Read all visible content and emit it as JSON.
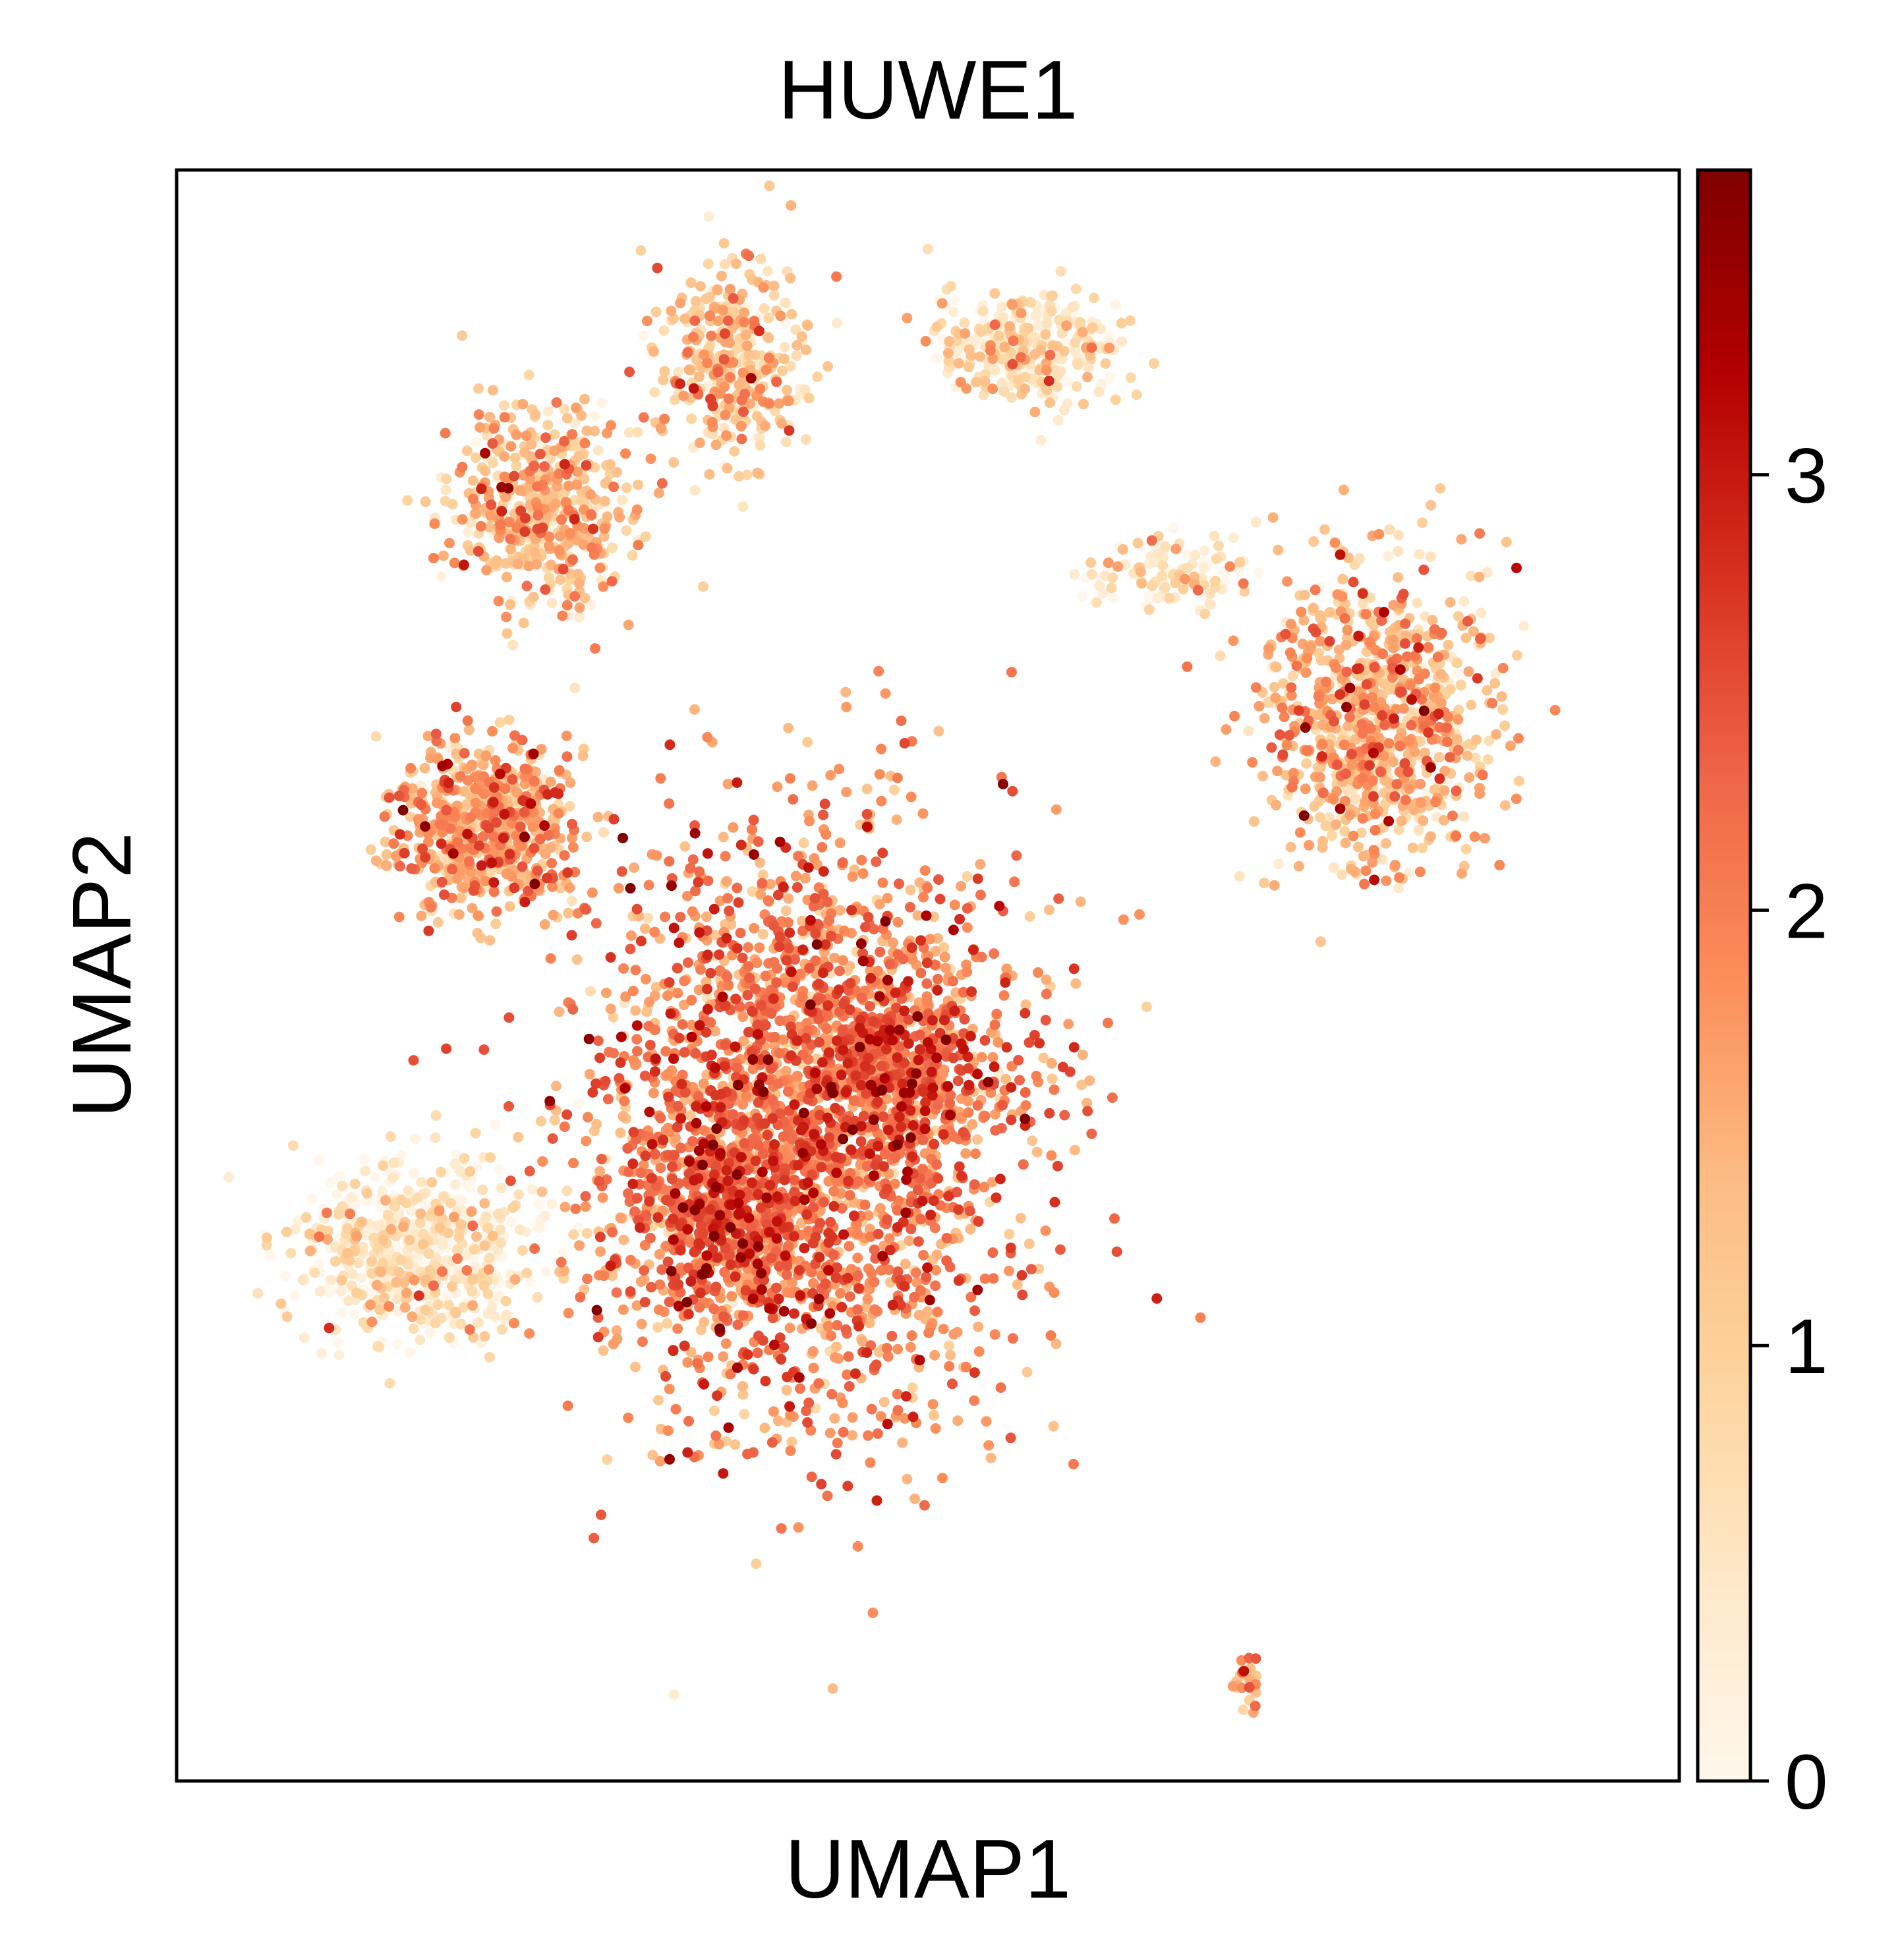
{
  "chart_data": {
    "type": "scatter",
    "title": "HUWE1",
    "xlabel": "UMAP1",
    "ylabel": "UMAP2",
    "x_ticks": [],
    "y_ticks": [],
    "grid": false,
    "colorbar": {
      "colormap": "OrRd",
      "range": [
        0,
        3.7
      ],
      "ticks": [
        0,
        1,
        2,
        3
      ],
      "tick_labels": [
        "0",
        "1",
        "2",
        "3"
      ]
    },
    "xlim": [
      0,
      100
    ],
    "ylim": [
      0,
      100
    ],
    "clusters": [
      {
        "x": 42,
        "y": 41,
        "sx": 10,
        "sy": 13,
        "n": 2600,
        "level": 1.9
      },
      {
        "x": 36,
        "y": 35,
        "sx": 4,
        "sy": 5,
        "n": 450,
        "level": 2.2
      },
      {
        "x": 48,
        "y": 44,
        "sx": 4,
        "sy": 4,
        "n": 400,
        "level": 2.1
      },
      {
        "x": 16,
        "y": 33,
        "sx": 5.5,
        "sy": 3.8,
        "n": 650,
        "level": 0.35
      },
      {
        "x": 20.5,
        "y": 59,
        "sx": 4.2,
        "sy": 3.8,
        "n": 650,
        "level": 1.5
      },
      {
        "x": 24,
        "y": 79,
        "sx": 4.2,
        "sy": 4.5,
        "n": 500,
        "level": 1.2
      },
      {
        "x": 37,
        "y": 88,
        "sx": 3.5,
        "sy": 4.5,
        "n": 350,
        "level": 1.1
      },
      {
        "x": 56.5,
        "y": 89,
        "sx": 4.5,
        "sy": 2.5,
        "n": 330,
        "level": 0.6
      },
      {
        "x": 80,
        "y": 66,
        "sx": 5.5,
        "sy": 6.5,
        "n": 900,
        "level": 1.3
      },
      {
        "x": 66,
        "y": 75,
        "sx": 4,
        "sy": 1.5,
        "n": 120,
        "level": 0.4
      },
      {
        "x": 29,
        "y": 32,
        "sx": 0.3,
        "sy": 0.5,
        "n": 10,
        "level": 1.2
      },
      {
        "x": 71,
        "y": 6,
        "sx": 0.8,
        "sy": 1.5,
        "n": 25,
        "level": 1.6
      }
    ],
    "total_points_approx": 6985
  }
}
